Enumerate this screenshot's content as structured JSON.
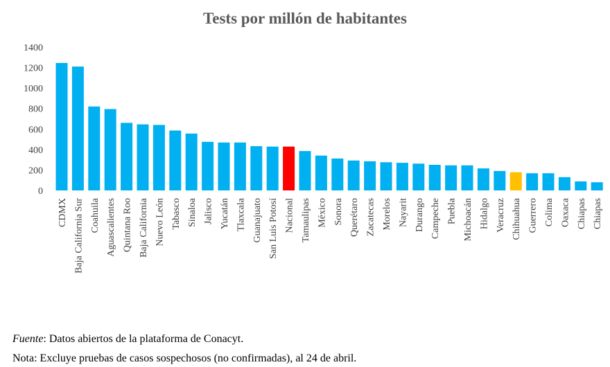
{
  "chart_data": {
    "type": "bar",
    "title": "Tests por millón de habitantes",
    "xlabel": "",
    "ylabel": "",
    "ylim": [
      0,
      1400
    ],
    "yticks": [
      0,
      200,
      400,
      600,
      800,
      1000,
      1200,
      1400
    ],
    "grid": false,
    "categories": [
      "CDMX",
      "Baja California Sur",
      "Coahuila",
      "Aguascalientes",
      "Quintana Roo",
      "Baja California",
      "Nuevo León",
      "Tabasco",
      "Sinaloa",
      "Jalisco",
      "Yucatán",
      "Tlaxcala",
      "Guanajuato",
      "San Luis Potosí",
      "Nacional",
      "Tamaulipas",
      "México",
      "Sonora",
      "Querétaro",
      "Zacatecas",
      "Morelos",
      "Nayarit",
      "Durango",
      "Campeche",
      "Puebla",
      "Michoacán",
      "Hidalgo",
      "Veracruz",
      "Chihuahua",
      "Guerrero",
      "Colima",
      "Oaxaca",
      "Chiapas",
      "Chiapas"
    ],
    "values": [
      1245,
      1210,
      820,
      795,
      660,
      645,
      640,
      585,
      555,
      475,
      468,
      468,
      432,
      428,
      428,
      385,
      340,
      312,
      292,
      285,
      275,
      270,
      262,
      250,
      245,
      245,
      215,
      190,
      178,
      168,
      168,
      130,
      88,
      80
    ],
    "colors": {
      "default": "#00B0F0",
      "Nacional": "#FF0000",
      "Chihuahua": "#FFC000"
    }
  },
  "footnotes": {
    "source_label": "Fuente",
    "source_text": ": Datos abiertos de la plataforma de Conacyt.",
    "note": "Nota: Excluye pruebas de casos sospechosos (no confirmadas), al 24 de abril."
  }
}
